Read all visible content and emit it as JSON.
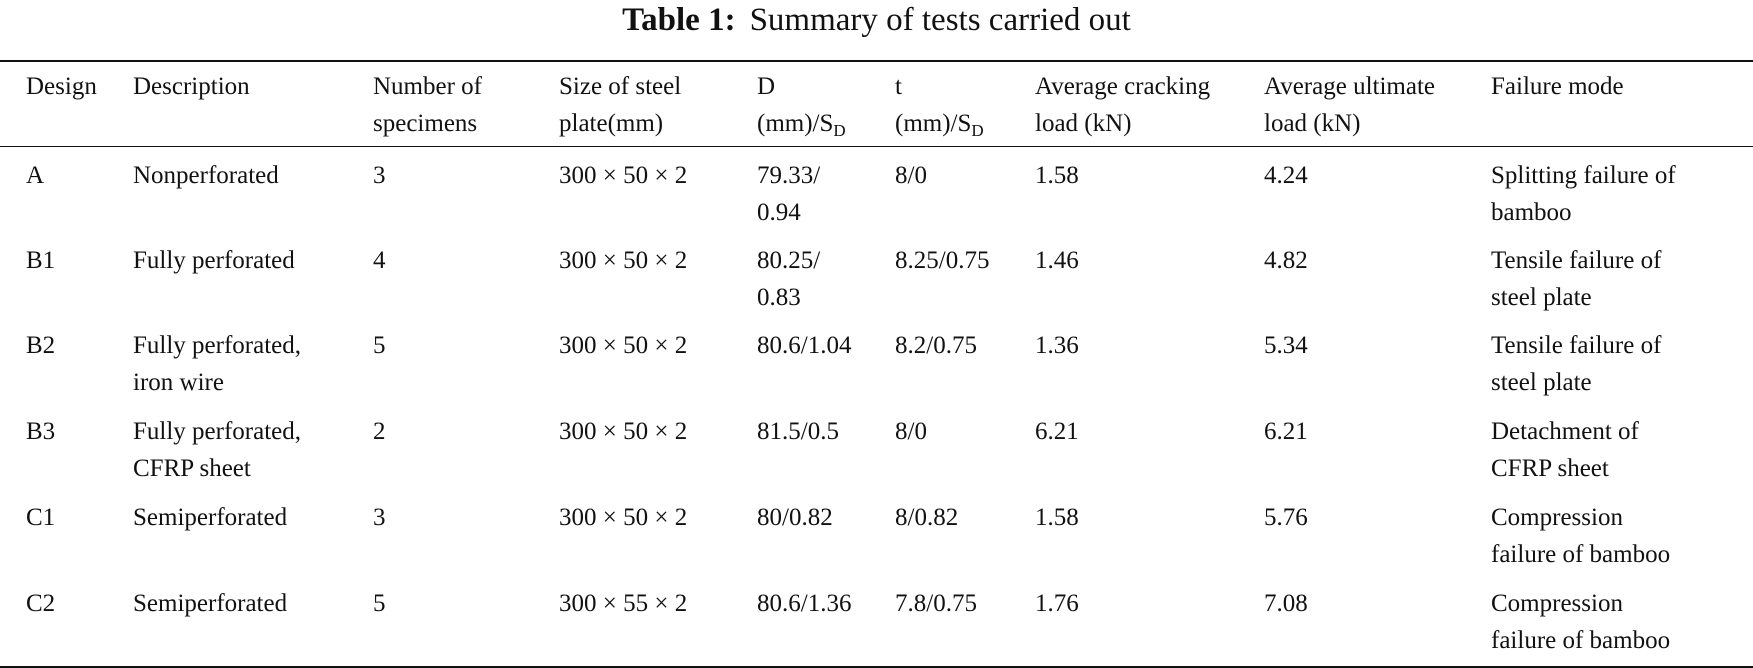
{
  "caption": {
    "label": "Table 1:",
    "text": "Summary of tests carried out"
  },
  "header": {
    "design": "Design",
    "description": "Description",
    "number": [
      "Number of",
      "specimens"
    ],
    "size": [
      "Size of steel",
      "plate(mm)"
    ],
    "d_top": "D",
    "d_prefix": "(mm)/S",
    "d_sub": "D",
    "t_top": "t",
    "t_prefix": "(mm)/S",
    "t_sub": "D",
    "cracking": [
      "Average cracking",
      "load (kN)"
    ],
    "ultimate": [
      "Average ultimate",
      "load (kN)"
    ],
    "failure": "Failure mode"
  },
  "rows": [
    {
      "design": "A",
      "description": [
        "Nonperforated"
      ],
      "number": "3",
      "size": "300 × 50 × 2",
      "d": [
        "79.33/",
        "0.94"
      ],
      "t": "8/0",
      "cracking": "1.58",
      "ultimate": "4.24",
      "failure": [
        "Splitting failure of",
        "bamboo"
      ]
    },
    {
      "design": "B1",
      "description": [
        "Fully perforated"
      ],
      "number": "4",
      "size": "300 × 50 × 2",
      "d": [
        "80.25/",
        "0.83"
      ],
      "t": "8.25/0.75",
      "cracking": "1.46",
      "ultimate": "4.82",
      "failure": [
        "Tensile failure of",
        "steel plate"
      ]
    },
    {
      "design": "B2",
      "description": [
        "Fully perforated,",
        "iron wire"
      ],
      "number": "5",
      "size": "300 × 50 × 2",
      "d": [
        "80.6/1.04"
      ],
      "t": "8.2/0.75",
      "cracking": "1.36",
      "ultimate": "5.34",
      "failure": [
        "Tensile failure of",
        "steel plate"
      ]
    },
    {
      "design": "B3",
      "description": [
        "Fully perforated,",
        "CFRP sheet"
      ],
      "number": "2",
      "size": "300 × 50 × 2",
      "d": [
        "81.5/0.5"
      ],
      "t": "8/0",
      "cracking": "6.21",
      "ultimate": "6.21",
      "failure": [
        "Detachment of",
        "CFRP sheet"
      ]
    },
    {
      "design": "C1",
      "description": [
        "Semiperforated"
      ],
      "number": "3",
      "size": "300 × 50 × 2",
      "d": [
        "80/0.82"
      ],
      "t": "8/0.82",
      "cracking": "1.58",
      "ultimate": "5.76",
      "failure": [
        "Compression",
        "failure of bamboo"
      ]
    },
    {
      "design": "C2",
      "description": [
        "Semiperforated"
      ],
      "number": "5",
      "size": "300 × 55 × 2",
      "d": [
        "80.6/1.36"
      ],
      "t": "7.8/0.75",
      "cracking": "1.76",
      "ultimate": "7.08",
      "failure": [
        "Compression",
        "failure of bamboo"
      ]
    }
  ]
}
